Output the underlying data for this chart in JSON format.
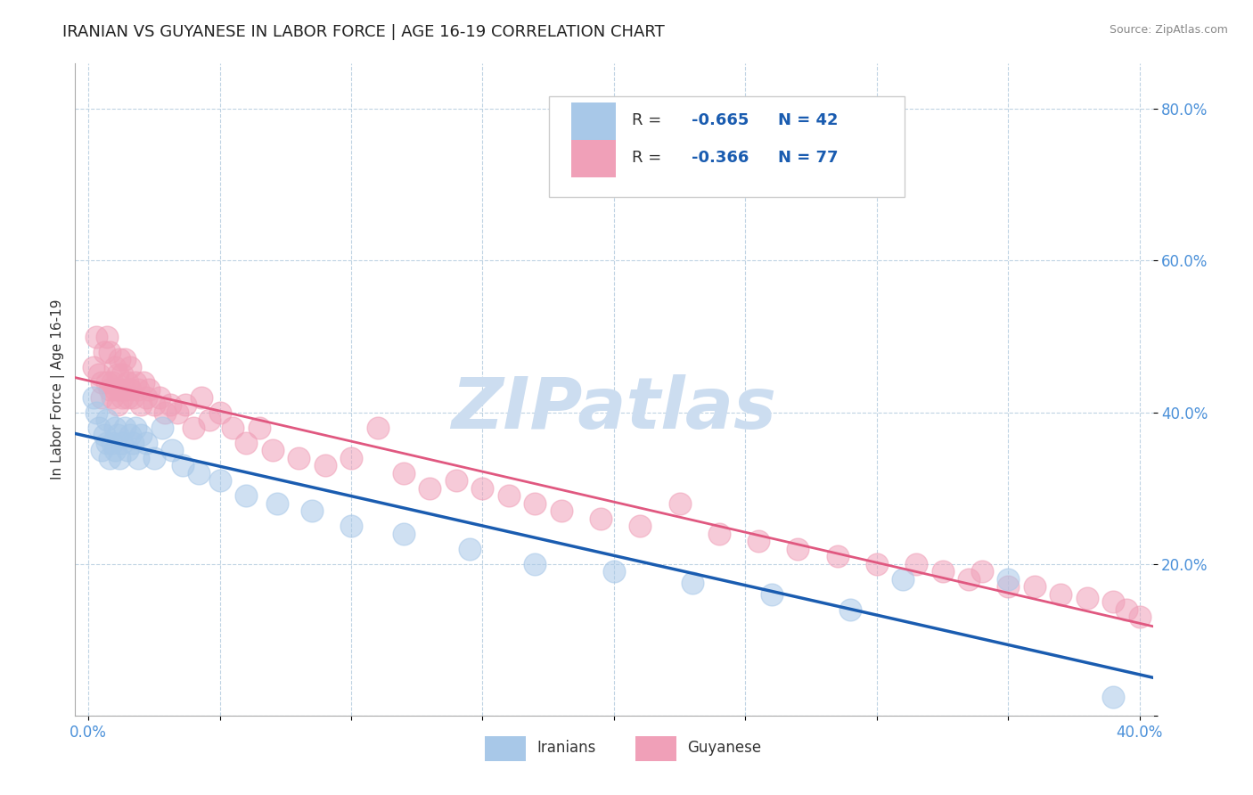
{
  "title": "IRANIAN VS GUYANESE IN LABOR FORCE | AGE 16-19 CORRELATION CHART",
  "source_text": "Source: ZipAtlas.com",
  "ylabel": "In Labor Force | Age 16-19",
  "xlim": [
    -0.005,
    0.405
  ],
  "ylim": [
    0.0,
    0.86
  ],
  "iranians_R": -0.665,
  "iranians_N": 42,
  "guyanese_R": -0.366,
  "guyanese_N": 77,
  "iranian_color": "#a8c8e8",
  "guyanese_color": "#f0a0b8",
  "iranian_line_color": "#1a5cb0",
  "guyanese_line_color": "#e05880",
  "background_color": "#ffffff",
  "watermark_color": "#ccddf0",
  "title_fontsize": 13,
  "axis_label_fontsize": 11,
  "tick_fontsize": 12,
  "iranians_x": [
    0.002,
    0.003,
    0.004,
    0.005,
    0.006,
    0.007,
    0.007,
    0.008,
    0.009,
    0.01,
    0.01,
    0.011,
    0.012,
    0.013,
    0.014,
    0.015,
    0.016,
    0.017,
    0.018,
    0.019,
    0.02,
    0.022,
    0.025,
    0.028,
    0.032,
    0.036,
    0.042,
    0.05,
    0.06,
    0.072,
    0.085,
    0.1,
    0.12,
    0.145,
    0.17,
    0.2,
    0.23,
    0.26,
    0.29,
    0.31,
    0.35,
    0.39
  ],
  "iranians_y": [
    0.42,
    0.4,
    0.38,
    0.35,
    0.37,
    0.36,
    0.39,
    0.34,
    0.36,
    0.35,
    0.38,
    0.37,
    0.34,
    0.36,
    0.38,
    0.35,
    0.37,
    0.36,
    0.38,
    0.34,
    0.37,
    0.36,
    0.34,
    0.38,
    0.35,
    0.33,
    0.32,
    0.31,
    0.29,
    0.28,
    0.27,
    0.25,
    0.24,
    0.22,
    0.2,
    0.19,
    0.175,
    0.16,
    0.14,
    0.18,
    0.18,
    0.025
  ],
  "guyanese_x": [
    0.002,
    0.003,
    0.004,
    0.005,
    0.005,
    0.006,
    0.007,
    0.007,
    0.008,
    0.008,
    0.009,
    0.009,
    0.01,
    0.01,
    0.011,
    0.011,
    0.012,
    0.012,
    0.013,
    0.013,
    0.014,
    0.014,
    0.015,
    0.015,
    0.016,
    0.016,
    0.017,
    0.018,
    0.019,
    0.02,
    0.021,
    0.022,
    0.023,
    0.025,
    0.027,
    0.029,
    0.031,
    0.034,
    0.037,
    0.04,
    0.043,
    0.046,
    0.05,
    0.055,
    0.06,
    0.065,
    0.07,
    0.08,
    0.09,
    0.1,
    0.11,
    0.12,
    0.13,
    0.14,
    0.15,
    0.16,
    0.17,
    0.18,
    0.195,
    0.21,
    0.225,
    0.24,
    0.255,
    0.27,
    0.285,
    0.3,
    0.315,
    0.325,
    0.335,
    0.34,
    0.35,
    0.36,
    0.37,
    0.38,
    0.39,
    0.395,
    0.4
  ],
  "guyanese_y": [
    0.46,
    0.5,
    0.45,
    0.44,
    0.42,
    0.48,
    0.44,
    0.5,
    0.43,
    0.48,
    0.44,
    0.42,
    0.43,
    0.46,
    0.41,
    0.45,
    0.43,
    0.47,
    0.42,
    0.45,
    0.43,
    0.47,
    0.42,
    0.44,
    0.43,
    0.46,
    0.42,
    0.44,
    0.43,
    0.41,
    0.44,
    0.42,
    0.43,
    0.41,
    0.42,
    0.4,
    0.41,
    0.4,
    0.41,
    0.38,
    0.42,
    0.39,
    0.4,
    0.38,
    0.36,
    0.38,
    0.35,
    0.34,
    0.33,
    0.34,
    0.38,
    0.32,
    0.3,
    0.31,
    0.3,
    0.29,
    0.28,
    0.27,
    0.26,
    0.25,
    0.28,
    0.24,
    0.23,
    0.22,
    0.21,
    0.2,
    0.2,
    0.19,
    0.18,
    0.19,
    0.17,
    0.17,
    0.16,
    0.155,
    0.15,
    0.14,
    0.13
  ]
}
